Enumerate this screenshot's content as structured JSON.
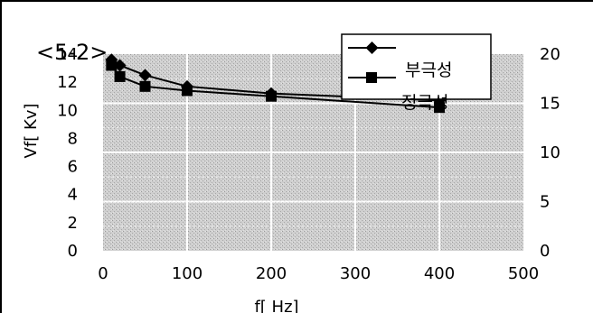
{
  "chart_data": {
    "type": "line",
    "title": "<5-2>",
    "xlabel": "f[ Hz]",
    "ylabel": "Vf[ Kv]",
    "x": [
      10,
      20,
      50,
      100,
      200,
      400
    ],
    "xlim": [
      0,
      500
    ],
    "xticks": [
      0,
      100,
      200,
      300,
      400,
      500
    ],
    "ylim": [
      0,
      14
    ],
    "yticks": [
      0,
      2,
      4,
      6,
      8,
      10,
      12,
      14
    ],
    "y2lim": [
      0,
      20
    ],
    "y2ticks": [
      0,
      5,
      10,
      15,
      20
    ],
    "series": [
      {
        "name": "부극성",
        "marker": "diamond",
        "values": [
          13.6,
          13.2,
          12.5,
          11.7,
          11.2,
          10.7
        ]
      },
      {
        "name": "정극성",
        "marker": "square",
        "values": [
          13.2,
          12.4,
          11.7,
          11.4,
          11.0,
          10.2
        ]
      }
    ],
    "grid": true,
    "legend": "top-right"
  }
}
